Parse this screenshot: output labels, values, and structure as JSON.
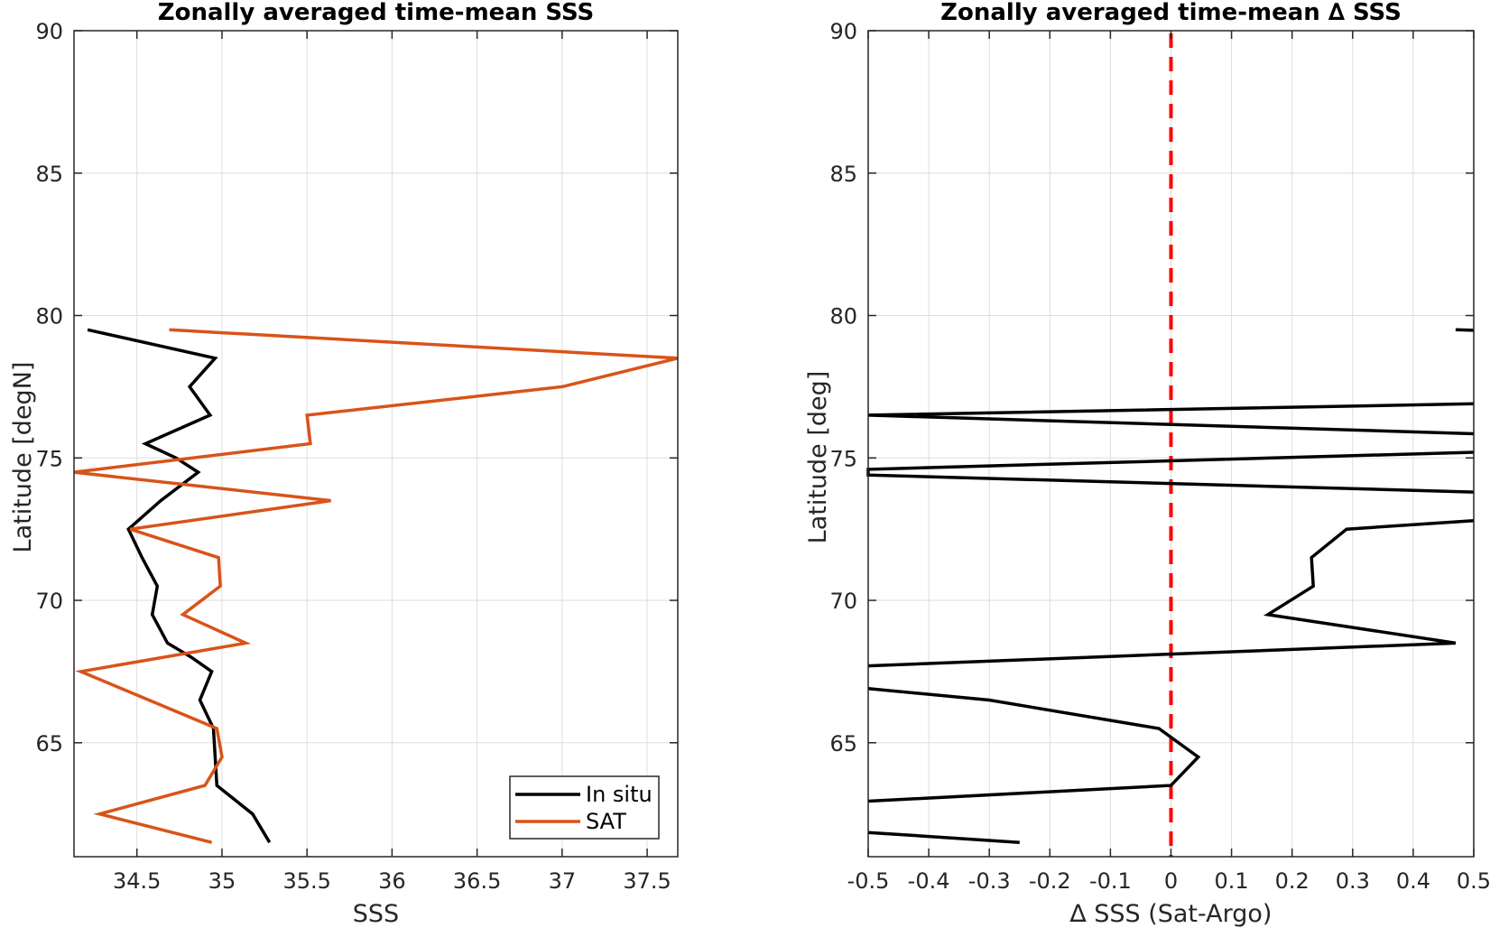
{
  "colors": {
    "insitu": "#000000",
    "sat": "#d95319",
    "zero_line": "#ff0000",
    "grid": "#dddddd",
    "axis": "#262626"
  },
  "chart_data": [
    {
      "type": "line",
      "title": "Zonally averaged time-mean SSS",
      "xlabel": "SSS",
      "ylabel": "Latitude [degN]",
      "xlim": [
        34.13,
        37.68
      ],
      "ylim": [
        61.0,
        90.0
      ],
      "xticks": [
        34.5,
        35,
        35.5,
        36,
        36.5,
        37,
        37.5
      ],
      "xtick_labels": [
        "34.5",
        "35",
        "35.5",
        "36",
        "36.5",
        "37",
        "37.5"
      ],
      "yticks": [
        65,
        70,
        75,
        80,
        85,
        90
      ],
      "ytick_labels": [
        "65",
        "70",
        "75",
        "80",
        "85",
        "90"
      ],
      "grid": true,
      "legend": "bottom-right",
      "series": [
        {
          "name": "In situ",
          "color": "#000000",
          "points": [
            [
              35.28,
              61.5
            ],
            [
              35.18,
              62.5
            ],
            [
              34.97,
              63.5
            ],
            [
              34.96,
              64.5
            ],
            [
              34.95,
              65.5
            ],
            [
              34.87,
              66.5
            ],
            [
              34.94,
              67.5
            ],
            [
              34.82,
              68.0
            ],
            [
              34.68,
              68.5
            ],
            [
              34.59,
              69.5
            ],
            [
              34.62,
              70.5
            ],
            [
              34.53,
              71.5
            ],
            [
              34.45,
              72.5
            ],
            [
              34.64,
              73.5
            ],
            [
              34.86,
              74.5
            ],
            [
              34.73,
              75.0
            ],
            [
              34.55,
              75.5
            ],
            [
              34.93,
              76.5
            ],
            [
              34.81,
              77.5
            ],
            [
              34.96,
              78.5
            ],
            [
              34.21,
              79.5
            ]
          ]
        },
        {
          "name": "SAT",
          "color": "#d95319",
          "points": [
            [
              34.94,
              61.5
            ],
            [
              34.28,
              62.5
            ],
            [
              34.9,
              63.5
            ],
            [
              35.0,
              64.5
            ],
            [
              34.97,
              65.5
            ],
            [
              34.17,
              67.5
            ],
            [
              35.14,
              68.5
            ],
            [
              34.77,
              69.5
            ],
            [
              34.99,
              70.5
            ],
            [
              34.98,
              71.5
            ],
            [
              34.46,
              72.5
            ],
            [
              35.64,
              73.5
            ],
            [
              34.13,
              74.5
            ],
            [
              35.52,
              75.5
            ],
            [
              35.5,
              76.5
            ],
            [
              37.0,
              77.5
            ],
            [
              37.68,
              78.5
            ],
            [
              34.69,
              79.5
            ]
          ]
        }
      ]
    },
    {
      "type": "line",
      "title": "Zonally averaged time-mean ∆ SSS",
      "xlabel": "∆ SSS (Sat-Argo)",
      "ylabel": "Latitude [deg]",
      "xlim": [
        -0.5,
        0.5
      ],
      "ylim": [
        61.0,
        90.0
      ],
      "xticks": [
        -0.5,
        -0.4,
        -0.3,
        -0.2,
        -0.1,
        0,
        0.1,
        0.2,
        0.3,
        0.4,
        0.5
      ],
      "xtick_labels": [
        "-0.5",
        "-0.4",
        "-0.3",
        "-0.2",
        "-0.1",
        "0",
        "0.1",
        "0.2",
        "0.3",
        "0.4",
        "0.5"
      ],
      "yticks": [
        65,
        70,
        75,
        80,
        85,
        90
      ],
      "ytick_labels": [
        "65",
        "70",
        "75",
        "80",
        "85",
        "90"
      ],
      "grid": true,
      "reference_line": {
        "x": 0,
        "style": "dashed",
        "color": "#ff0000"
      },
      "series": [
        {
          "name": "",
          "color": "#000000",
          "segments": [
            [
              [
                -0.5,
                61.85
              ],
              [
                -0.25,
                61.5
              ]
            ],
            [
              [
                -0.5,
                62.95
              ],
              [
                0.0,
                63.5
              ],
              [
                0.045,
                64.5
              ],
              [
                -0.02,
                65.5
              ],
              [
                -0.3,
                66.5
              ],
              [
                -0.5,
                66.9
              ]
            ],
            [
              [
                -0.5,
                67.7
              ],
              [
                0.47,
                68.5
              ],
              [
                0.16,
                69.5
              ],
              [
                0.235,
                70.5
              ],
              [
                0.232,
                71.5
              ],
              [
                0.29,
                72.5
              ],
              [
                0.5,
                72.8
              ]
            ],
            [
              [
                0.5,
                73.8
              ],
              [
                -0.5,
                74.4
              ],
              [
                -0.5,
                74.6
              ],
              [
                0.5,
                75.2
              ]
            ],
            [
              [
                0.5,
                75.85
              ],
              [
                -0.5,
                76.5
              ],
              [
                0.5,
                76.9
              ]
            ],
            [
              [
                0.47,
                79.5
              ],
              [
                0.5,
                79.48
              ]
            ]
          ]
        }
      ]
    }
  ]
}
